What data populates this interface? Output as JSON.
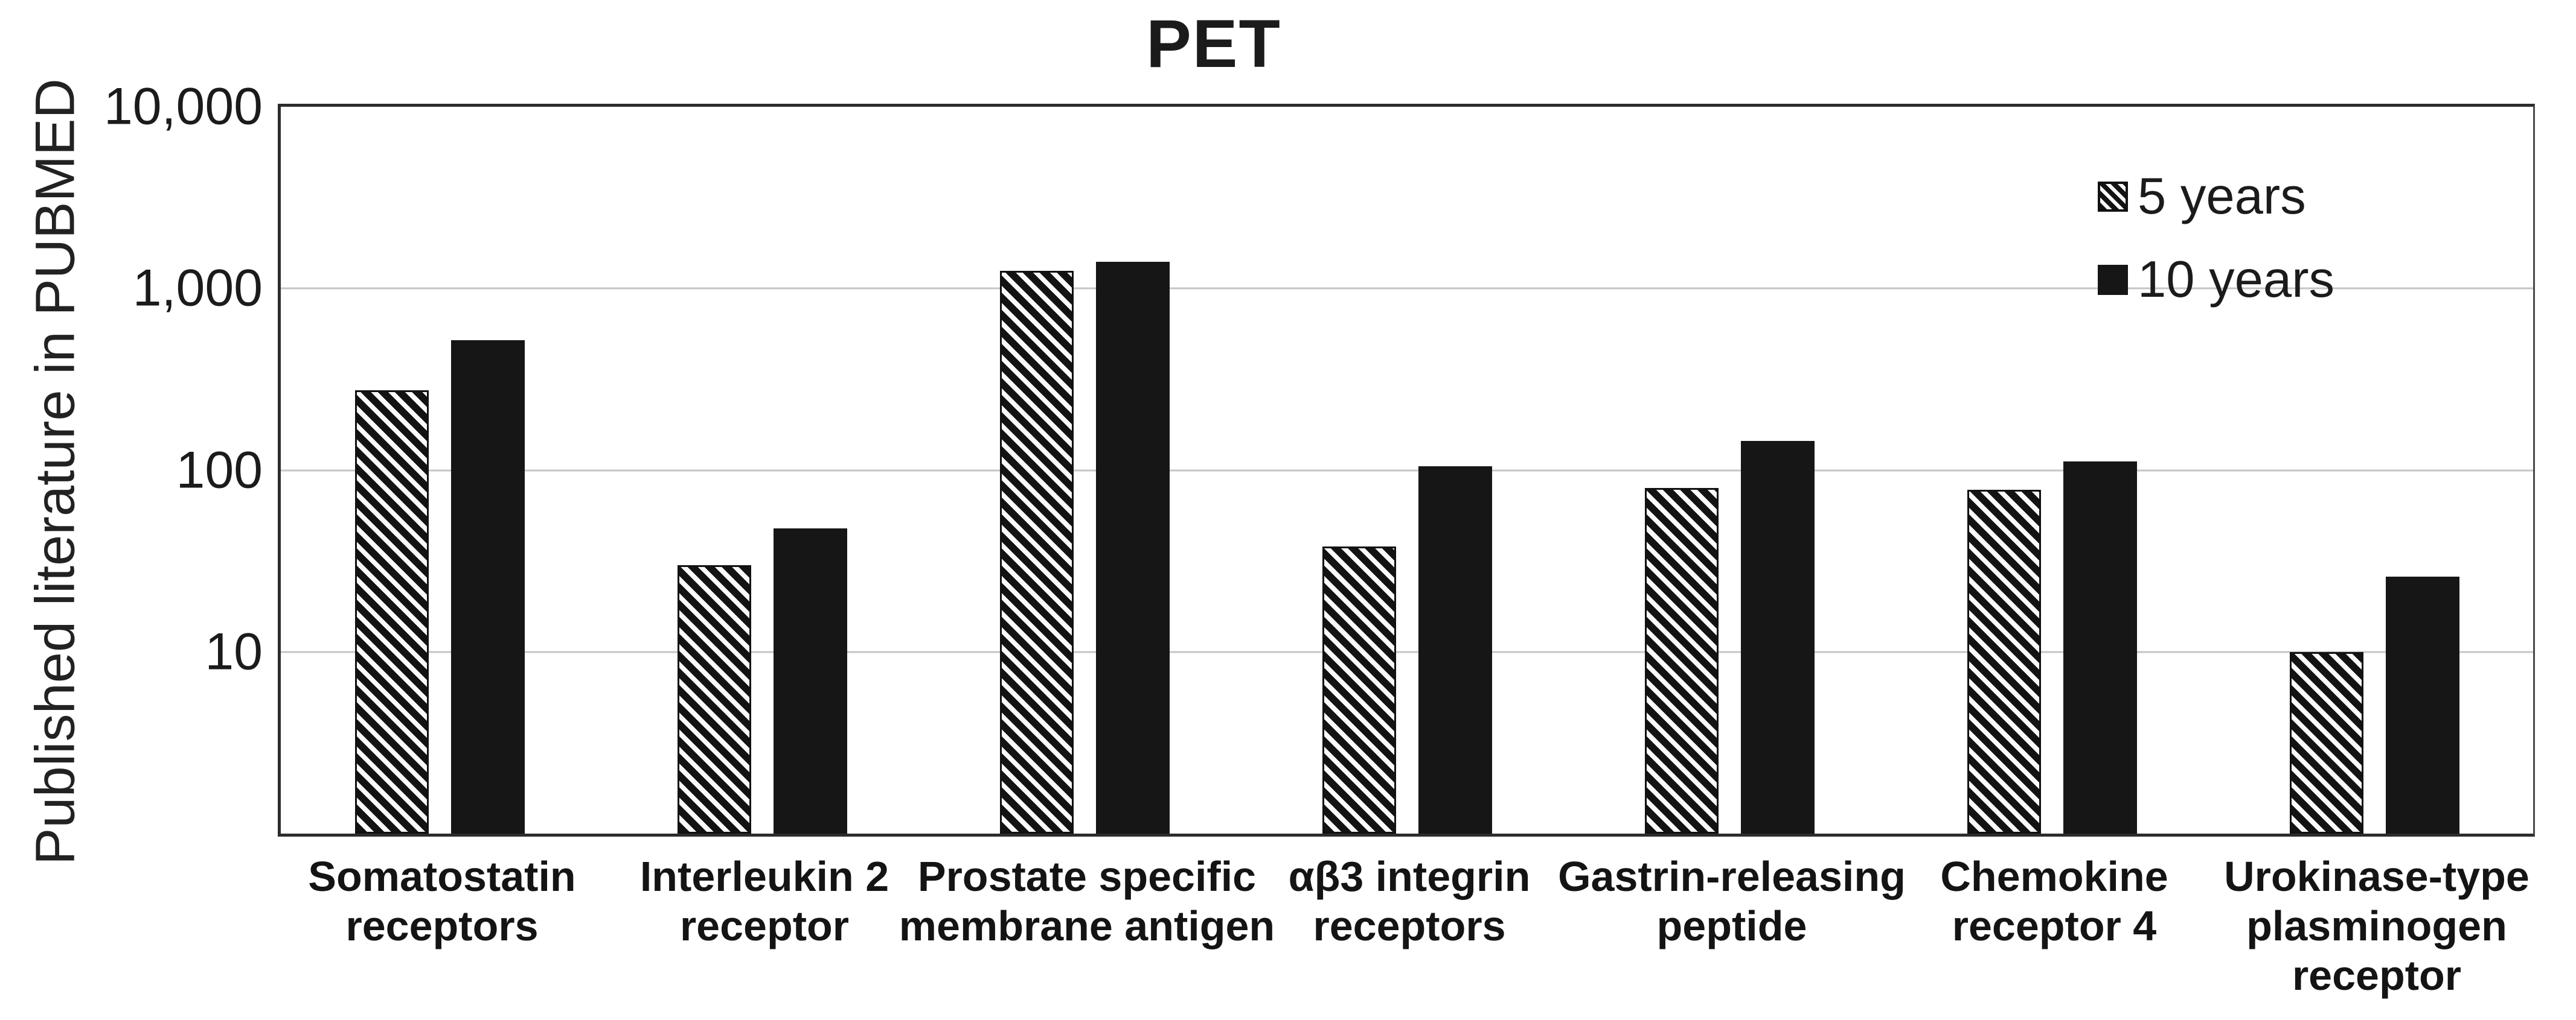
{
  "title": "PET",
  "y_axis_title": "Published literature in PUBMED",
  "y_ticks": [
    {
      "label": "10,000",
      "percent_from_top": 0
    },
    {
      "label": "1,000",
      "percent_from_top": 25
    },
    {
      "label": "100",
      "percent_from_top": 50
    },
    {
      "label": "10",
      "percent_from_top": 75
    }
  ],
  "legend": [
    {
      "label": "5 years",
      "swatch": "hatched"
    },
    {
      "label": "10 years",
      "swatch": "solid"
    }
  ],
  "chart_data": {
    "type": "bar",
    "title": "PET",
    "ylabel": "Published literature in PUBMED",
    "xlabel": "",
    "y_scale": "log",
    "ylim": [
      1,
      10000
    ],
    "grid": true,
    "legend_position": "upper-right",
    "categories": [
      "Somatostatin\nreceptors",
      "Interleukin 2\nreceptor",
      "Prostate specific\nmembrane antigen",
      "αβ3 integrin\nreceptors",
      "Gastrin-releasing\npeptide",
      "Chemokine\nreceptor 4",
      "Urokinase-type\nplasminogen\nreceptor"
    ],
    "series": [
      {
        "name": "5 years",
        "style": "hatched",
        "values": [
          275,
          30,
          1250,
          38,
          80,
          78,
          10
        ]
      },
      {
        "name": "10 years",
        "style": "solid",
        "values": [
          520,
          48,
          1400,
          105,
          145,
          112,
          26
        ]
      }
    ]
  },
  "colors": {
    "bar_fill": "#161616",
    "gridline": "#c5c5c5",
    "frame": "#2c2c2c",
    "text": "#1b1b1b",
    "background": "#ffffff"
  }
}
